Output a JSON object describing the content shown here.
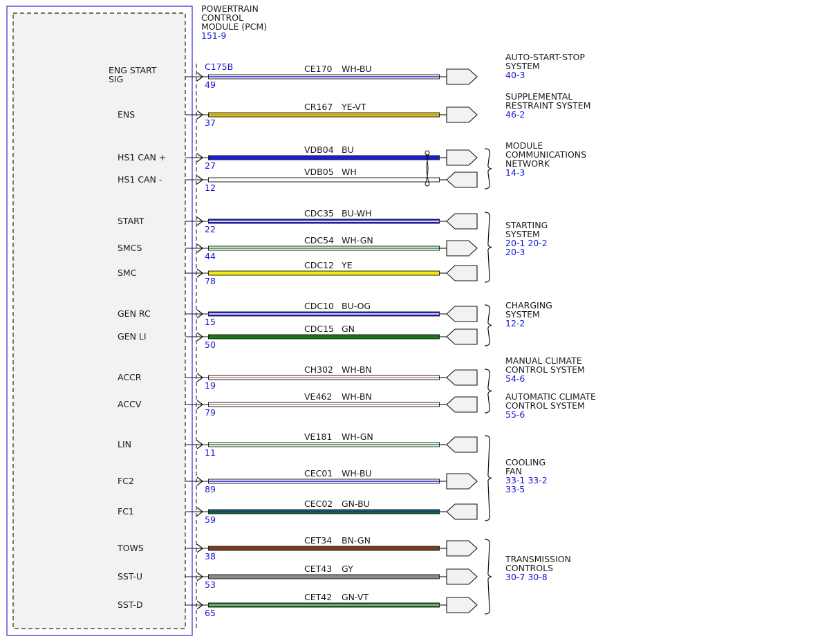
{
  "module": {
    "title": [
      "POWERTRAIN",
      "CONTROL",
      "MODULE (PCM)"
    ],
    "ref": "151-9",
    "connector": "C175B"
  },
  "colors": {
    "WH-BU": [
      "#ffffff",
      "#2b2bd8"
    ],
    "YE-VT": [
      "#f2d21b",
      "#b29a2a"
    ],
    "BU": [
      "#1c1cd6",
      "#1c1cd6"
    ],
    "WH": [
      "#ffffff",
      "#ffffff"
    ],
    "BU-WH": [
      "#1c1cd6",
      "#ffffff"
    ],
    "WH-GN": [
      "#ffffff",
      "#2e9a2e"
    ],
    "YE": [
      "#f5ea0a",
      "#f5ea0a"
    ],
    "BU-OG": [
      "#1c1cd6",
      "#ffffff"
    ],
    "GN": [
      "#137a13",
      "#137a13"
    ],
    "WH-BN": [
      "#ffffff",
      "#c48a8a"
    ],
    "GN-BU": [
      "#0d6b3a",
      "#2a2ab0"
    ],
    "BN-GN": [
      "#7a3a1c",
      "#7a3a1c"
    ],
    "GY": [
      "#8a8a8a",
      "#8a8a8a"
    ],
    "GN-VT": [
      "#1f6e1f",
      "#9ad09a"
    ]
  },
  "wires": [
    {
      "signal": [
        "ENG START",
        "SIG"
      ],
      "pin": "49",
      "circuit": "CE170",
      "color": "WH-BU",
      "end": "out"
    },
    {
      "signal": [
        "ENS"
      ],
      "pin": "37",
      "circuit": "CR167",
      "color": "YE-VT",
      "end": "out"
    },
    {
      "signal": [
        "HS1 CAN +"
      ],
      "pin": "27",
      "circuit": "VDB04",
      "color": "BU",
      "end": "out"
    },
    {
      "signal": [
        "HS1 CAN -"
      ],
      "pin": "12",
      "circuit": "VDB05",
      "color": "WH",
      "end": "in"
    },
    {
      "signal": [
        "START"
      ],
      "pin": "22",
      "circuit": "CDC35",
      "color": "BU-WH",
      "end": "in"
    },
    {
      "signal": [
        "SMCS"
      ],
      "pin": "44",
      "circuit": "CDC54",
      "color": "WH-GN",
      "end": "out"
    },
    {
      "signal": [
        "SMC"
      ],
      "pin": "78",
      "circuit": "CDC12",
      "color": "YE",
      "end": "in"
    },
    {
      "signal": [
        "GEN RC"
      ],
      "pin": "15",
      "circuit": "CDC10",
      "color": "BU-OG",
      "end": "in"
    },
    {
      "signal": [
        "GEN LI"
      ],
      "pin": "50",
      "circuit": "CDC15",
      "color": "GN",
      "end": "in"
    },
    {
      "signal": [
        "ACCR"
      ],
      "pin": "19",
      "circuit": "CH302",
      "color": "WH-BN",
      "end": "in"
    },
    {
      "signal": [
        "ACCV"
      ],
      "pin": "79",
      "circuit": "VE462",
      "color": "WH-BN",
      "end": "in"
    },
    {
      "signal": [
        "LIN"
      ],
      "pin": "11",
      "circuit": "VE181",
      "color": "WH-GN",
      "end": "in"
    },
    {
      "signal": [
        "FC2"
      ],
      "pin": "89",
      "circuit": "CEC01",
      "color": "WH-BU",
      "end": "out"
    },
    {
      "signal": [
        "FC1"
      ],
      "pin": "59",
      "circuit": "CEC02",
      "color": "GN-BU",
      "end": "in"
    },
    {
      "signal": [
        "TOWS"
      ],
      "pin": "38",
      "circuit": "CET34",
      "color": "BN-GN",
      "end": "out"
    },
    {
      "signal": [
        "SST-U"
      ],
      "pin": "53",
      "circuit": "CET43",
      "color": "GY",
      "end": "out"
    },
    {
      "signal": [
        "SST-D"
      ],
      "pin": "65",
      "circuit": "CET42",
      "color": "GN-VT",
      "end": "out"
    }
  ],
  "destinations": [
    {
      "name": [
        "AUTO-START-STOP",
        "SYSTEM"
      ],
      "refs": [
        "40-3"
      ],
      "from": 0,
      "to": 0
    },
    {
      "name": [
        "SUPPLEMENTAL",
        "RESTRAINT SYSTEM"
      ],
      "refs": [
        "46-2"
      ],
      "from": 1,
      "to": 1
    },
    {
      "name": [
        "MODULE",
        "COMMUNICATIONS",
        "NETWORK"
      ],
      "refs": [
        "14-3"
      ],
      "from": 2,
      "to": 3
    },
    {
      "name": [
        "STARTING",
        "SYSTEM"
      ],
      "refs": [
        "20-1   20-2",
        "20-3"
      ],
      "from": 4,
      "to": 6
    },
    {
      "name": [
        "CHARGING",
        "SYSTEM"
      ],
      "refs": [
        "12-2"
      ],
      "from": 7,
      "to": 8
    },
    {
      "name": [
        "MANUAL CLIMATE",
        "CONTROL SYSTEM"
      ],
      "refs": [
        "54-6"
      ],
      "from": 9,
      "to": 9
    },
    {
      "name": [
        "AUTOMATIC CLIMATE",
        "CONTROL SYSTEM"
      ],
      "refs": [
        "55-6"
      ],
      "from": 10,
      "to": 10
    },
    {
      "name": [
        "COOLING",
        "FAN"
      ],
      "refs": [
        "33-1   33-2",
        "33-5"
      ],
      "from": 11,
      "to": 13
    },
    {
      "name": [
        "TRANSMISSION",
        "CONTROLS"
      ],
      "refs": [
        "30-7   30-8"
      ],
      "from": 14,
      "to": 16
    }
  ]
}
